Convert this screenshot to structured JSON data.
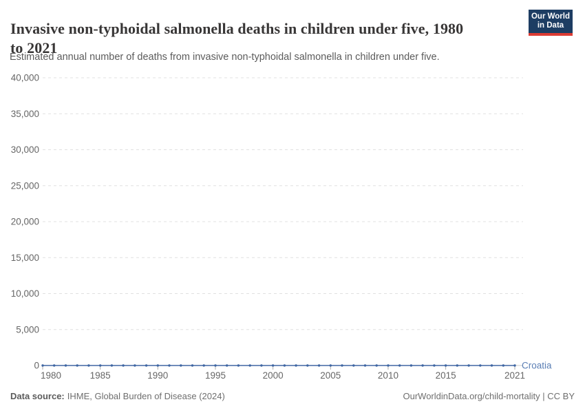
{
  "header": {
    "title": "Invasive non-typhoidal salmonella deaths in children under five, 1980 to 2021",
    "title_line1": "Invasive non-typhoidal salmonella deaths in children under five, 1980",
    "title_line2": "to 2021",
    "subtitle": "Estimated annual number of deaths from invasive non-typhoidal salmonella in children under five.",
    "logo": {
      "line1": "Our World",
      "line2": "in Data",
      "bg_color": "#1d3d63",
      "bar_color": "#dc3b33"
    }
  },
  "chart_data": {
    "type": "line",
    "title": "Invasive non-typhoidal salmonella deaths in children under five, 1980 to 2021",
    "xlabel": "",
    "ylabel": "",
    "xlim": [
      1980,
      2021
    ],
    "ylim": [
      0,
      40000
    ],
    "x_ticks": [
      1980,
      1985,
      1990,
      1995,
      2000,
      2005,
      2010,
      2015,
      2021
    ],
    "y_ticks": [
      0,
      5000,
      10000,
      15000,
      20000,
      25000,
      30000,
      35000,
      40000
    ],
    "grid": "horizontal-dashed",
    "legend": "end-of-line-label",
    "x": [
      1980,
      1981,
      1982,
      1983,
      1984,
      1985,
      1986,
      1987,
      1988,
      1989,
      1990,
      1991,
      1992,
      1993,
      1994,
      1995,
      1996,
      1997,
      1998,
      1999,
      2000,
      2001,
      2002,
      2003,
      2004,
      2005,
      2006,
      2007,
      2008,
      2009,
      2010,
      2011,
      2012,
      2013,
      2014,
      2015,
      2016,
      2017,
      2018,
      2019,
      2020,
      2021
    ],
    "series": [
      {
        "name": "Croatia",
        "color": "#4067a3",
        "label_color": "#5b7fb5",
        "values": [
          0,
          0,
          0,
          0,
          0,
          0,
          0,
          0,
          0,
          0,
          0,
          0,
          0,
          0,
          0,
          0,
          0,
          0,
          0,
          0,
          0,
          0,
          0,
          0,
          0,
          0,
          0,
          0,
          0,
          0,
          0,
          0,
          0,
          0,
          0,
          0,
          0,
          0,
          0,
          0,
          0,
          0
        ]
      }
    ],
    "colors": {
      "gridline": "#e0e0e0",
      "axis_line": "#c8c8c8",
      "tick_label": "#666666",
      "tick_mark": "#adadad"
    }
  },
  "footer": {
    "datasource_label": "Data source:",
    "datasource_value": "IHME, Global Burden of Disease (2024)",
    "attribution": "OurWorldinData.org/child-mortality | CC BY"
  }
}
